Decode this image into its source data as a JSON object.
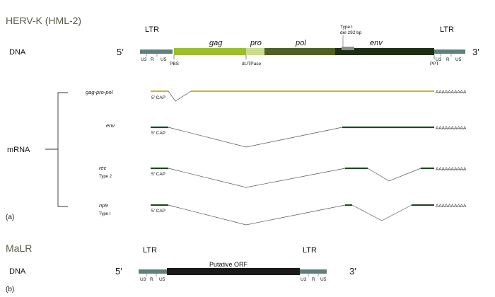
{
  "herv": {
    "title": "HERV-K (HML-2)",
    "dna_label": "DNA",
    "five_prime": "5′",
    "three_prime": "3′",
    "ltr_left": "LTR",
    "ltr_right": "LTR",
    "genes": {
      "gag": "gag",
      "pro": "pro",
      "pol": "pol",
      "env": "env"
    },
    "ltr_parts": {
      "u3": "U3",
      "r": "R",
      "u5": "U5"
    },
    "markers": {
      "pbs": "PBS",
      "dutpase": "dUTPase",
      "ppt": "PPT"
    },
    "deletion_line1": "Type I",
    "deletion_line2": "del 292 bp",
    "colors": {
      "ltr": "#5f7f7c",
      "gag": "#99bf2e",
      "pro": "#c8de8a",
      "pol": "#4e6125",
      "env": "#1d2e14",
      "gag_pro_pol_mrna": "#c7b535",
      "env_mrna": "#1d4a22"
    }
  },
  "mrna": {
    "label": "mRNA",
    "panel_a": "(a)",
    "cap": "5′ CAP",
    "polya": "AAAAAAAAAA",
    "transcripts": [
      {
        "name": "gag-pro-pol",
        "subtype": ""
      },
      {
        "name": "env",
        "subtype": ""
      },
      {
        "name": "rec",
        "subtype": "Type 2"
      },
      {
        "name": "np9",
        "subtype": "Type I"
      }
    ]
  },
  "malr": {
    "title": "MaLR",
    "dna_label": "DNA",
    "five_prime": "5′",
    "three_prime": "3′",
    "ltr_left": "LTR",
    "ltr_right": "LTR",
    "orf_label": "Putative ORF",
    "ltr_parts": {
      "u3": "U3",
      "r": "R",
      "u5": "U5"
    },
    "panel_b": "(b)",
    "colors": {
      "ltr": "#5f7f7c",
      "orf": "#1a1a1a"
    }
  }
}
